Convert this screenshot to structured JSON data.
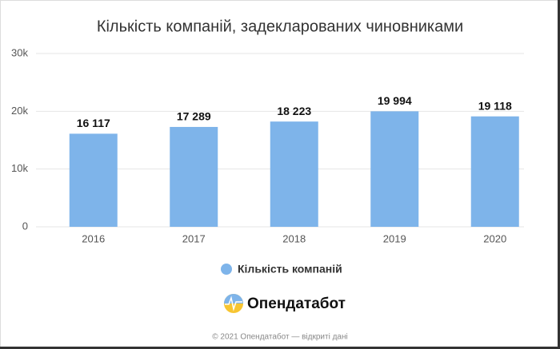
{
  "chart_data": {
    "type": "bar",
    "title": "Кількість компаній, задекларованих чиновниками",
    "categories": [
      "2016",
      "2017",
      "2018",
      "2019",
      "2020"
    ],
    "series": [
      {
        "name": "Кількість компаній",
        "color": "#7eb4ea",
        "values": [
          16117,
          17289,
          18223,
          19994,
          19118
        ],
        "value_labels": [
          "16 117",
          "17 289",
          "18 223",
          "19 994",
          "19 118"
        ]
      }
    ],
    "ylim": [
      0,
      30000
    ],
    "yticks": [
      0,
      {
        "value": 10000,
        "label": "10k"
      },
      {
        "value": 20000,
        "label": "20k"
      },
      {
        "value": 30000,
        "label": "30k"
      }
    ],
    "grid": true
  },
  "brand": {
    "logo_text": "Опендатабот",
    "footer": "© 2021 Опендатабот — відкриті дані"
  }
}
